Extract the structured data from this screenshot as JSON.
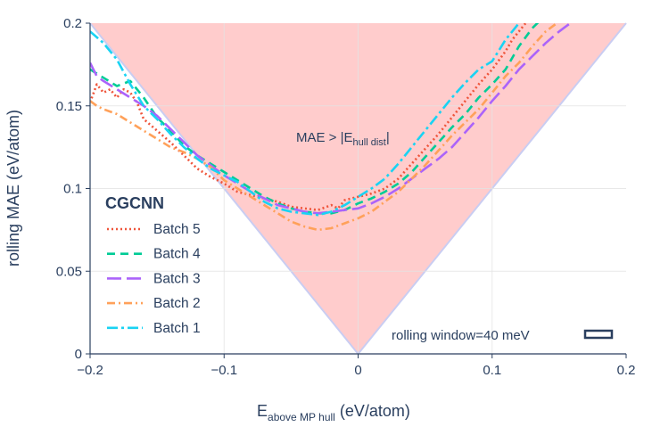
{
  "chart_data": {
    "type": "line",
    "xlabel_main": "E",
    "xlabel_sub": "above MP hull",
    "xlabel_unit": "(eV/atom)",
    "ylabel": "rolling MAE (eV/atom)",
    "xlim": [
      -0.2,
      0.2
    ],
    "ylim": [
      0,
      0.2
    ],
    "xticks": [
      {
        "value": -0.2,
        "label": "−0.2"
      },
      {
        "value": -0.1,
        "label": "−0.1"
      },
      {
        "value": 0,
        "label": "0"
      },
      {
        "value": 0.1,
        "label": "0.1"
      },
      {
        "value": 0.2,
        "label": "0.2"
      }
    ],
    "yticks": [
      {
        "value": 0,
        "label": "0"
      },
      {
        "value": 0.05,
        "label": "0.05"
      },
      {
        "value": 0.1,
        "label": "0.1"
      },
      {
        "value": 0.15,
        "label": "0.15"
      },
      {
        "value": 0.2,
        "label": "0.2"
      }
    ],
    "annotation": {
      "prefix": "MAE > |E",
      "sub": "hull dist",
      "suffix": "|"
    },
    "window_label": "rolling window=40 meV",
    "legend_title": "CGCNN",
    "region_color": "#ffcccc",
    "series": [
      {
        "name": "Batch 5",
        "color": "#ef553b",
        "dash": "2,3",
        "x": [
          -0.2,
          -0.195,
          -0.19,
          -0.185,
          -0.18,
          -0.175,
          -0.17,
          -0.165,
          -0.16,
          -0.15,
          -0.14,
          -0.13,
          -0.12,
          -0.11,
          -0.1,
          -0.09,
          -0.08,
          -0.07,
          -0.06,
          -0.05,
          -0.04,
          -0.03,
          -0.02,
          -0.015,
          -0.01,
          0,
          0.01,
          0.02,
          0.03,
          0.04,
          0.05,
          0.06,
          0.07,
          0.08,
          0.09,
          0.1,
          0.11,
          0.115,
          0.12,
          0.125,
          0.13
        ],
        "y": [
          0.152,
          0.163,
          0.158,
          0.16,
          0.155,
          0.16,
          0.158,
          0.152,
          0.142,
          0.135,
          0.128,
          0.12,
          0.112,
          0.107,
          0.103,
          0.098,
          0.096,
          0.094,
          0.092,
          0.089,
          0.088,
          0.087,
          0.09,
          0.088,
          0.093,
          0.095,
          0.097,
          0.1,
          0.106,
          0.115,
          0.124,
          0.133,
          0.143,
          0.153,
          0.163,
          0.172,
          0.183,
          0.19,
          0.195,
          0.2,
          0.205
        ]
      },
      {
        "name": "Batch 4",
        "color": "#00cc96",
        "dash": "9,6",
        "x": [
          -0.2,
          -0.19,
          -0.18,
          -0.17,
          -0.16,
          -0.15,
          -0.14,
          -0.13,
          -0.12,
          -0.11,
          -0.1,
          -0.09,
          -0.08,
          -0.07,
          -0.06,
          -0.05,
          -0.04,
          -0.03,
          -0.02,
          -0.01,
          0,
          0.01,
          0.02,
          0.03,
          0.04,
          0.05,
          0.06,
          0.07,
          0.08,
          0.09,
          0.1,
          0.11,
          0.12,
          0.13,
          0.14
        ],
        "y": [
          0.172,
          0.167,
          0.162,
          0.165,
          0.155,
          0.143,
          0.135,
          0.126,
          0.12,
          0.115,
          0.11,
          0.105,
          0.1,
          0.095,
          0.091,
          0.088,
          0.086,
          0.085,
          0.085,
          0.087,
          0.091,
          0.094,
          0.098,
          0.103,
          0.11,
          0.119,
          0.128,
          0.137,
          0.145,
          0.155,
          0.163,
          0.172,
          0.186,
          0.197,
          0.205
        ]
      },
      {
        "name": "Batch 3",
        "color": "#ab63fa",
        "dash": "16,6",
        "x": [
          -0.2,
          -0.195,
          -0.19,
          -0.18,
          -0.17,
          -0.16,
          -0.15,
          -0.14,
          -0.13,
          -0.12,
          -0.11,
          -0.1,
          -0.09,
          -0.08,
          -0.07,
          -0.06,
          -0.05,
          -0.04,
          -0.03,
          -0.02,
          -0.01,
          0,
          0.01,
          0.02,
          0.03,
          0.04,
          0.05,
          0.06,
          0.07,
          0.08,
          0.09,
          0.1,
          0.11,
          0.12,
          0.13,
          0.14,
          0.15,
          0.16
        ],
        "y": [
          0.176,
          0.168,
          0.165,
          0.16,
          0.155,
          0.15,
          0.144,
          0.136,
          0.128,
          0.12,
          0.114,
          0.108,
          0.103,
          0.098,
          0.094,
          0.09,
          0.088,
          0.086,
          0.085,
          0.086,
          0.087,
          0.088,
          0.091,
          0.095,
          0.1,
          0.106,
          0.112,
          0.118,
          0.125,
          0.134,
          0.143,
          0.153,
          0.162,
          0.172,
          0.18,
          0.188,
          0.195,
          0.201
        ]
      },
      {
        "name": "Batch 2",
        "color": "#ffa15a",
        "dash": "9,4,2,4",
        "x": [
          -0.2,
          -0.195,
          -0.19,
          -0.18,
          -0.17,
          -0.16,
          -0.15,
          -0.14,
          -0.13,
          -0.12,
          -0.11,
          -0.1,
          -0.09,
          -0.08,
          -0.07,
          -0.06,
          -0.05,
          -0.04,
          -0.03,
          -0.02,
          -0.01,
          0,
          0.01,
          0.02,
          0.03,
          0.04,
          0.05,
          0.06,
          0.07,
          0.08,
          0.09,
          0.1,
          0.11,
          0.12,
          0.13,
          0.14,
          0.15
        ],
        "y": [
          0.153,
          0.15,
          0.148,
          0.145,
          0.14,
          0.135,
          0.13,
          0.125,
          0.122,
          0.118,
          0.113,
          0.105,
          0.1,
          0.095,
          0.09,
          0.085,
          0.08,
          0.077,
          0.075,
          0.076,
          0.079,
          0.082,
          0.086,
          0.092,
          0.098,
          0.106,
          0.114,
          0.123,
          0.132,
          0.14,
          0.148,
          0.158,
          0.168,
          0.176,
          0.186,
          0.195,
          0.201
        ]
      },
      {
        "name": "Batch 1",
        "color": "#19d3f3",
        "dash": "12,4,3,4",
        "x": [
          -0.2,
          -0.19,
          -0.18,
          -0.17,
          -0.16,
          -0.15,
          -0.14,
          -0.13,
          -0.12,
          -0.11,
          -0.1,
          -0.09,
          -0.08,
          -0.07,
          -0.06,
          -0.05,
          -0.04,
          -0.03,
          -0.02,
          -0.01,
          0,
          0.01,
          0.02,
          0.03,
          0.04,
          0.05,
          0.06,
          0.07,
          0.08,
          0.09,
          0.1,
          0.11,
          0.12
        ],
        "y": [
          0.195,
          0.188,
          0.178,
          0.163,
          0.15,
          0.142,
          0.133,
          0.125,
          0.118,
          0.112,
          0.108,
          0.104,
          0.098,
          0.092,
          0.088,
          0.086,
          0.085,
          0.084,
          0.086,
          0.09,
          0.095,
          0.1,
          0.106,
          0.115,
          0.125,
          0.135,
          0.145,
          0.155,
          0.164,
          0.172,
          0.177,
          0.19,
          0.2
        ]
      }
    ]
  }
}
